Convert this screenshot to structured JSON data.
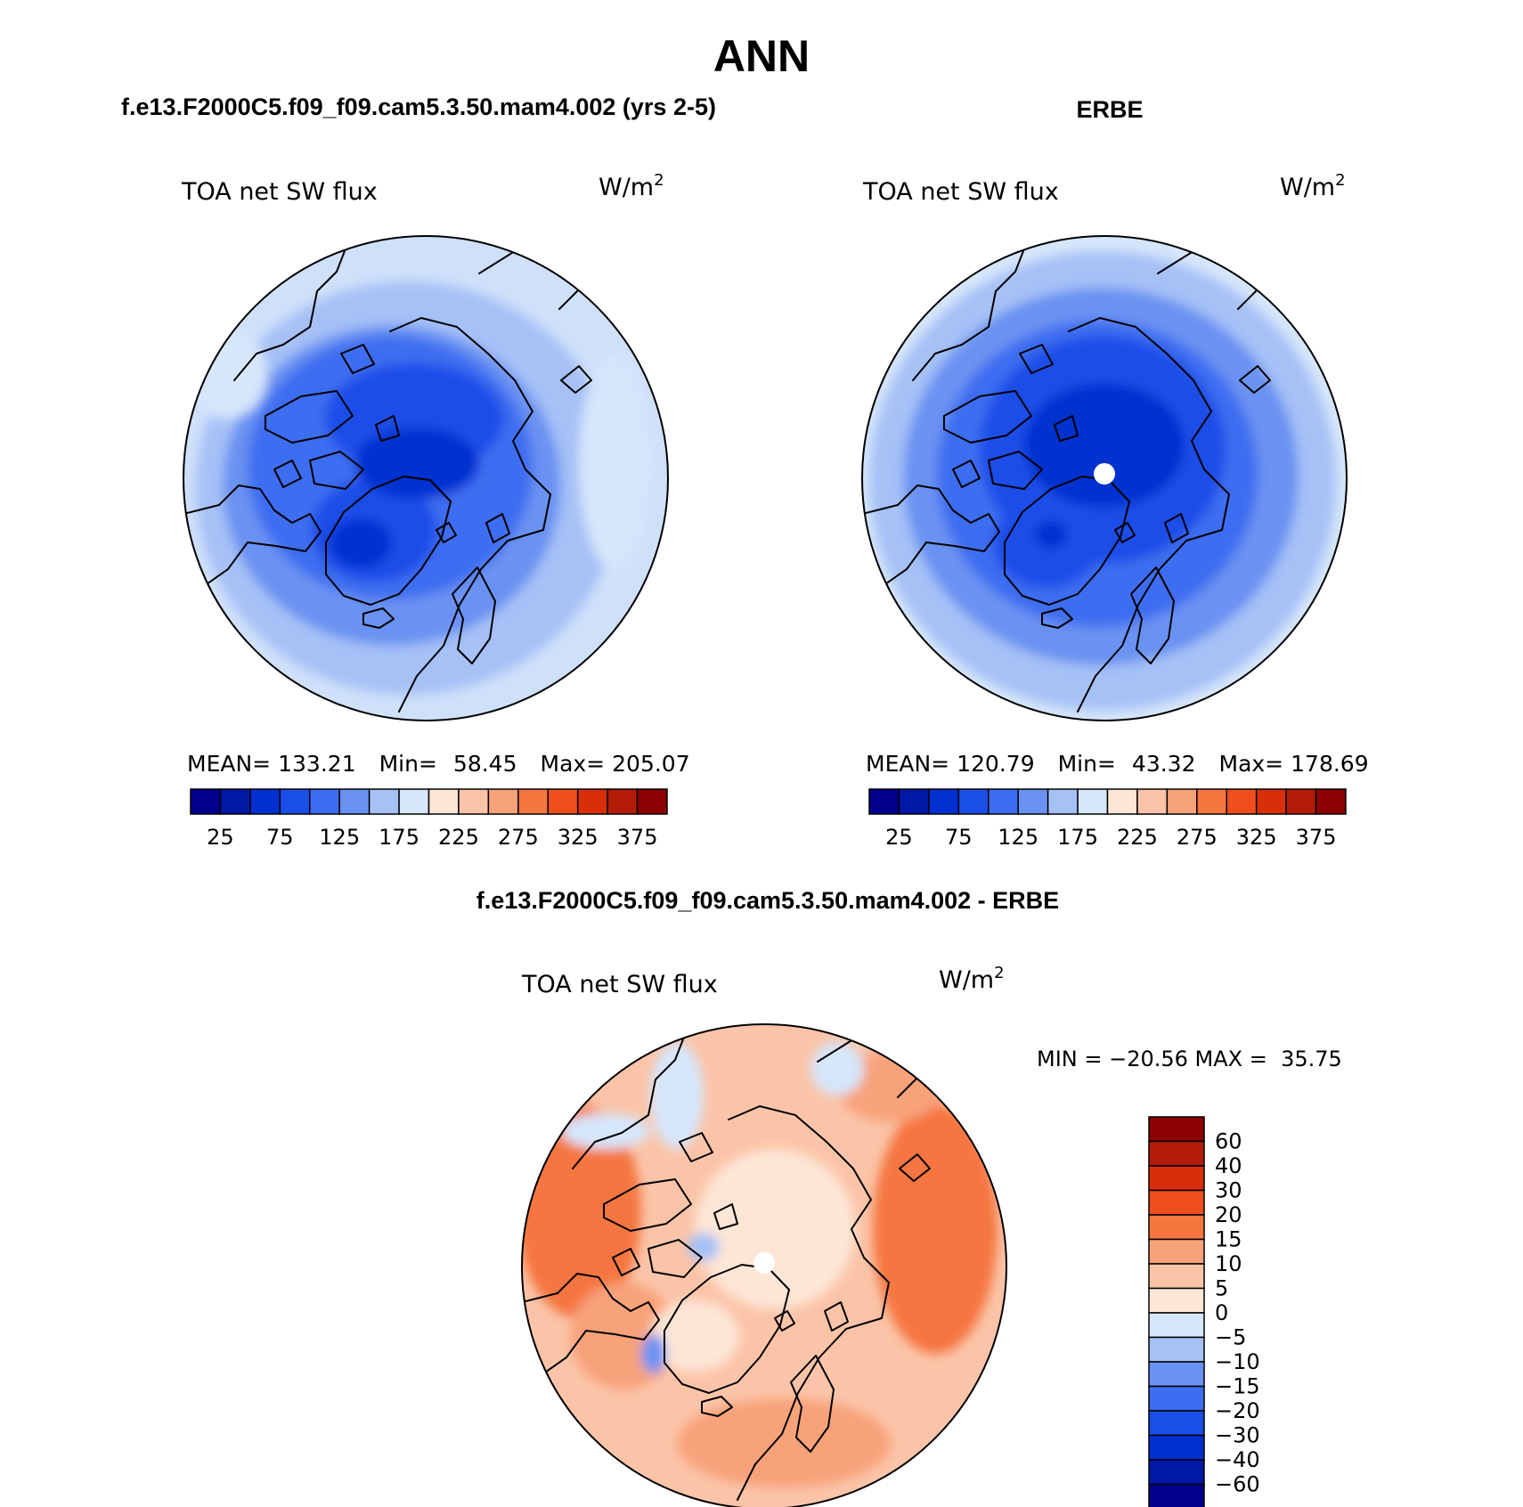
{
  "figure": {
    "main_title": "ANN",
    "panel_model": {
      "title": "f.e13.F2000C5.f09_f09.cam5.3.50.mam4.002 (yrs 2-5)",
      "variable": "TOA net SW flux",
      "units": "W/m",
      "units_sup": "2",
      "stats": {
        "mean_label": "MEAN=",
        "mean": "133.21",
        "min_label": "Min=",
        "min": "58.45",
        "max_label": "Max=",
        "max": "205.07"
      }
    },
    "panel_obs": {
      "title": "ERBE",
      "variable": "TOA net SW flux",
      "units": "W/m",
      "units_sup": "2",
      "stats": {
        "mean_label": "MEAN=",
        "mean": "120.79",
        "min_label": "Min=",
        "min": "43.32",
        "max_label": "Max=",
        "max": "178.69"
      }
    },
    "panel_diff": {
      "title": "f.e13.F2000C5.f09_f09.cam5.3.50.mam4.002 - ERBE",
      "variable": "TOA net SW flux",
      "units": "W/m",
      "units_sup": "2",
      "minmax": "MIN = −20.56 MAX =  35.75"
    }
  },
  "colorbars": {
    "abs": {
      "colors": [
        "#00008b",
        "#0018a8",
        "#0030d0",
        "#1a4ee8",
        "#3d6df0",
        "#6a92f2",
        "#a6c1f6",
        "#d6e6fb",
        "#fde6d6",
        "#fbc4a8",
        "#f8a27a",
        "#f5763f",
        "#f04f1c",
        "#d92f08",
        "#b41c0a",
        "#8b0000"
      ],
      "labels": [
        "25",
        "75",
        "125",
        "175",
        "225",
        "275",
        "325",
        "375"
      ]
    },
    "diff": {
      "colors": [
        "#8b0000",
        "#b41c0a",
        "#d92f08",
        "#f04f1c",
        "#f5763f",
        "#f8a27a",
        "#fbc4a8",
        "#fde6d6",
        "#d6e6fb",
        "#a6c1f6",
        "#6a92f2",
        "#3d6df0",
        "#1a4ee8",
        "#0030d0",
        "#0018a8",
        "#00008b"
      ],
      "labels": [
        "60",
        "40",
        "30",
        "20",
        "15",
        "10",
        "5",
        "0",
        "−5",
        "−10",
        "−15",
        "−20",
        "−30",
        "−40",
        "−60"
      ]
    }
  },
  "maps": {
    "model_field": [
      "#cfe0fa",
      "#a6c1f6",
      "#6a92f2",
      "#3d6df0",
      "#1a4ee8",
      "#0030d0"
    ],
    "obs_field": [
      "#d6e6fb",
      "#a6c1f6",
      "#6a92f2",
      "#3d6df0",
      "#1a4ee8",
      "#0030d0"
    ],
    "diff_field": [
      "#fde6d6",
      "#fbc4a8",
      "#f8a27a",
      "#f5763f"
    ]
  }
}
